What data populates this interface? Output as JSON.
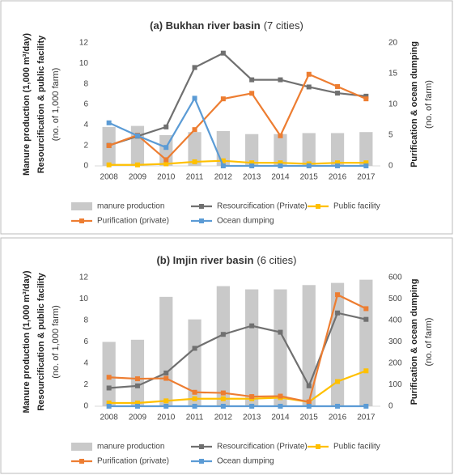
{
  "chart_data": [
    {
      "type": "combo",
      "title": "(a) Bukhan river basin",
      "title_note": "(7 cities)",
      "ylabel": [
        "Manure production (1,000 m³/day)",
        "Resourcification & public facility",
        "(no. of 1,000 farm)"
      ],
      "y2label": [
        "Purification & ocean dumping",
        "(no. of farm)"
      ],
      "categories": [
        "2008",
        "2009",
        "2010",
        "2011",
        "2012",
        "2013",
        "2014",
        "2015",
        "2016",
        "2017"
      ],
      "ylim": [
        0,
        12
      ],
      "yticks": [
        0,
        2,
        4,
        6,
        8,
        10,
        12
      ],
      "y2lim": [
        0,
        20
      ],
      "y2ticks": [
        0,
        5,
        10,
        15,
        20
      ],
      "series": [
        {
          "name": "manure production",
          "kind": "bar",
          "color": "#c9c9c9",
          "values": [
            3.8,
            3.9,
            3.0,
            3.3,
            3.4,
            3.1,
            3.1,
            3.2,
            3.2,
            3.3
          ]
        },
        {
          "name": "Resourcification (Private)",
          "kind": "line",
          "color": "#707070",
          "values": [
            2.0,
            2.9,
            3.8,
            9.6,
            11.0,
            8.4,
            8.4,
            7.7,
            7.1,
            6.8
          ]
        },
        {
          "name": "Public facility",
          "kind": "line",
          "color": "#ffc000",
          "values": [
            0.1,
            0.1,
            0.2,
            0.4,
            0.5,
            0.3,
            0.3,
            0.2,
            0.3,
            0.3
          ]
        },
        {
          "name": "Purification (private)",
          "kind": "line",
          "axis": "y2",
          "color": "#ed7d31",
          "values": [
            3.3,
            5.0,
            1.0,
            5.9,
            10.9,
            11.8,
            4.9,
            14.9,
            12.9,
            10.9
          ]
        },
        {
          "name": "Ocean dumping",
          "kind": "line",
          "axis": "y2",
          "color": "#5b9bd5",
          "values": [
            7.0,
            4.9,
            3.0,
            11.0,
            0,
            0,
            0,
            0,
            0,
            0
          ]
        }
      ]
    },
    {
      "type": "combo",
      "title": "(b) Imjin river basin",
      "title_note": "(6 cities)",
      "ylabel": [
        "Manure production (1,000 m³/day)",
        "Resourcification & public facility",
        "(no. of 1,000 farm)"
      ],
      "y2label": [
        "Purification & ocean dumping",
        "(no. of farm)"
      ],
      "categories": [
        "2008",
        "2009",
        "2010",
        "2011",
        "2012",
        "2013",
        "2014",
        "2015",
        "2016",
        "2017"
      ],
      "ylim": [
        0,
        12
      ],
      "yticks": [
        0,
        2,
        4,
        6,
        8,
        10,
        12
      ],
      "y2lim": [
        0,
        600
      ],
      "y2ticks": [
        0,
        100,
        200,
        300,
        400,
        500,
        600
      ],
      "series": [
        {
          "name": "manure production",
          "kind": "bar",
          "color": "#c9c9c9",
          "values": [
            6.0,
            6.2,
            10.2,
            8.1,
            11.2,
            10.9,
            10.9,
            11.3,
            11.5,
            11.8
          ]
        },
        {
          "name": "Resourcification (Private)",
          "kind": "line",
          "color": "#707070",
          "values": [
            1.7,
            1.9,
            3.1,
            5.4,
            6.7,
            7.5,
            6.9,
            1.9,
            8.7,
            8.1
          ]
        },
        {
          "name": "Public facility",
          "kind": "line",
          "color": "#ffc000",
          "values": [
            0.3,
            0.3,
            0.5,
            0.7,
            0.7,
            0.7,
            0.8,
            0.4,
            2.3,
            3.3
          ]
        },
        {
          "name": "Purification (private)",
          "kind": "line",
          "axis": "y2",
          "color": "#ed7d31",
          "values": [
            135,
            128,
            130,
            65,
            62,
            45,
            47,
            20,
            520,
            455
          ]
        },
        {
          "name": "Ocean dumping",
          "kind": "line",
          "axis": "y2",
          "color": "#5b9bd5",
          "values": [
            0,
            0,
            0,
            0,
            0,
            0,
            0,
            0,
            0,
            0
          ]
        }
      ]
    }
  ]
}
